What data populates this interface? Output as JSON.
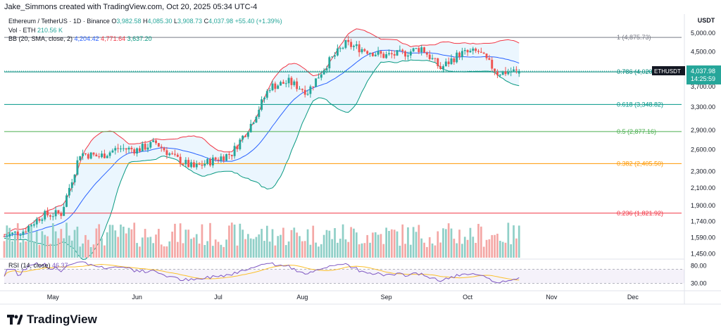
{
  "header": {
    "created_by": "Jake_Simmons created with TradingView.com, Oct 20, 2025 05:34 UTC-4",
    "symbol_line": "Ethereum / TetherUS · 1D · Binance",
    "ohlc": {
      "o_label": "O",
      "o": "3,982.58",
      "h_label": "H",
      "h": "4,085.30",
      "l_label": "L",
      "l": "3,908.73",
      "c_label": "C",
      "c": "4,037.98",
      "change": "+55.40 (+1.39%)"
    },
    "vol_label": "Vol · ETH",
    "vol_value": "210.56 K",
    "bb_label": "BB (20, SMA, close, 2)",
    "bb_values": [
      "4,204.42",
      "4,771.64",
      "3,637.20"
    ]
  },
  "axis_currency": "USDT",
  "price_axis_ticks": [
    "5,000.00",
    "4,500.00",
    "3,700.00",
    "3,300.00",
    "2,900.00",
    "2,600.00",
    "2,300.00",
    "2,100.00",
    "1,900.00",
    "1,740.00",
    "1,590.00",
    "1,450.00"
  ],
  "rsi_axis_ticks": [
    "80.00",
    "30.00"
  ],
  "time_axis_ticks": [
    "May",
    "Jun",
    "Jul",
    "Aug",
    "Sep",
    "Oct",
    "Nov",
    "Dec"
  ],
  "last_price_tag": {
    "symbol": "ETHUSDT",
    "price": "4,037.98",
    "countdown": "14:25:59"
  },
  "rsi": {
    "label": "RSI (14, close)",
    "value": "46.37"
  },
  "logo_text": "TradingView",
  "colors": {
    "up": "#26a69a",
    "down": "#ef5350",
    "vol_up": "#8fcfc7",
    "vol_down": "#f4a7a5",
    "bb_basis": "#2962ff",
    "bb_upper": "#f23645",
    "bb_lower": "#089981",
    "bb_fill": "#e3f2fd",
    "rsi_line": "#7e57c2",
    "rsi_ma": "#fbc02d",
    "fib_1": "#787b86",
    "fib_0786": "#00897b",
    "fib_0618": "#009688",
    "fib_05": "#4caf50",
    "fib_0382": "#ff9800",
    "fib_0236": "#f23645"
  },
  "chart_data": {
    "type": "candlestick",
    "symbol": "ETH/USDT",
    "timeframe": "1D",
    "exchange": "Binance",
    "y_scale": "log",
    "ylim": [
      1420,
      5300
    ],
    "x_range": [
      "2025-04-13",
      "2025-12-20"
    ],
    "fib_levels": [
      {
        "ratio": "1",
        "value": 4875.73,
        "label": "1 (4,875.73)"
      },
      {
        "ratio": "0.786",
        "value": 4020.34,
        "label": "0.786 (4,020.34)"
      },
      {
        "ratio": "0.618",
        "value": 3348.82,
        "label": "0.618 (3,348.82)"
      },
      {
        "ratio": "0.5",
        "value": 2877.16,
        "label": "0.5 (2,877.16)"
      },
      {
        "ratio": "0.382",
        "value": 2405.5,
        "label": "0.382 (2,405.50)"
      },
      {
        "ratio": "0.236",
        "value": 1821.92,
        "label": "0.236 (1,821.92)"
      }
    ],
    "weekly_closes": [
      {
        "date": "2025-04-13",
        "close": 1600
      },
      {
        "date": "2025-04-20",
        "close": 1650
      },
      {
        "date": "2025-04-27",
        "close": 1800
      },
      {
        "date": "2025-05-04",
        "close": 1820
      },
      {
        "date": "2025-05-11",
        "close": 2550
      },
      {
        "date": "2025-05-18",
        "close": 2500
      },
      {
        "date": "2025-05-25",
        "close": 2620
      },
      {
        "date": "2025-06-01",
        "close": 2600
      },
      {
        "date": "2025-06-08",
        "close": 2700
      },
      {
        "date": "2025-06-15",
        "close": 2480
      },
      {
        "date": "2025-06-22",
        "close": 2350
      },
      {
        "date": "2025-06-29",
        "close": 2450
      },
      {
        "date": "2025-07-06",
        "close": 2550
      },
      {
        "date": "2025-07-13",
        "close": 3000
      },
      {
        "date": "2025-07-20",
        "close": 3700
      },
      {
        "date": "2025-07-27",
        "close": 3800
      },
      {
        "date": "2025-08-03",
        "close": 3600
      },
      {
        "date": "2025-08-10",
        "close": 4200
      },
      {
        "date": "2025-08-17",
        "close": 4700
      },
      {
        "date": "2025-08-24",
        "close": 4550
      },
      {
        "date": "2025-08-31",
        "close": 4400
      },
      {
        "date": "2025-09-07",
        "close": 4450
      },
      {
        "date": "2025-09-14",
        "close": 4600
      },
      {
        "date": "2025-09-21",
        "close": 4100
      },
      {
        "date": "2025-09-28",
        "close": 4450
      },
      {
        "date": "2025-10-05",
        "close": 4500
      },
      {
        "date": "2025-10-12",
        "close": 4000
      },
      {
        "date": "2025-10-19",
        "close": 4037.98
      }
    ],
    "last": {
      "date": "2025-10-20",
      "open": 3982.58,
      "high": 4085.3,
      "low": 3908.73,
      "close": 4037.98,
      "change": 55.4,
      "change_pct": 1.39,
      "volume_eth": "210.56 K"
    },
    "bollinger_last": {
      "basis": 4204.42,
      "upper": 4771.64,
      "lower": 3637.2
    },
    "rsi_last": 46.37,
    "rsi_levels": [
      70,
      30
    ]
  }
}
